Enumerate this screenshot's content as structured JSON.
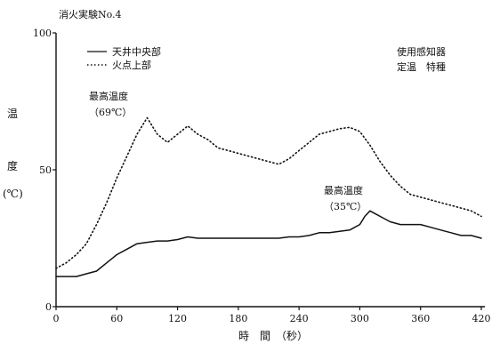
{
  "chart_data": {
    "type": "line",
    "title": "消火実験No.4",
    "ylabel": [
      "温",
      "度",
      "(℃)"
    ],
    "xlabel": "時　間　（秒）",
    "xlim": [
      0,
      420
    ],
    "ylim": [
      0,
      100
    ],
    "x_ticks": [
      0,
      60,
      120,
      180,
      240,
      300,
      360,
      420
    ],
    "y_ticks": [
      0,
      50,
      100
    ],
    "grid": false,
    "legend_position": "top-left",
    "note": [
      "使用感知器",
      "定温　特種"
    ],
    "series": [
      {
        "name": "天井中央部",
        "style": "solid",
        "x": [
          0,
          20,
          30,
          40,
          50,
          60,
          70,
          80,
          90,
          100,
          110,
          120,
          130,
          140,
          150,
          160,
          170,
          180,
          190,
          200,
          210,
          220,
          230,
          240,
          250,
          260,
          270,
          280,
          290,
          300,
          305,
          310,
          315,
          320,
          330,
          340,
          350,
          360,
          370,
          380,
          390,
          400,
          410,
          420
        ],
        "y": [
          11,
          11,
          12,
          13,
          16,
          19,
          21,
          23,
          23.5,
          24,
          24,
          24.5,
          25.5,
          25,
          25,
          25,
          25,
          25,
          25,
          25,
          25,
          25,
          25.5,
          25.5,
          26,
          27,
          27,
          27.5,
          28,
          30,
          33,
          35,
          34,
          33,
          31,
          30,
          30,
          30,
          29,
          28,
          27,
          26,
          26,
          25
        ]
      },
      {
        "name": "火点上部",
        "style": "dotted",
        "x": [
          0,
          10,
          20,
          30,
          40,
          50,
          60,
          70,
          80,
          90,
          100,
          110,
          120,
          130,
          140,
          150,
          160,
          170,
          180,
          190,
          200,
          210,
          220,
          230,
          240,
          250,
          260,
          270,
          280,
          290,
          300,
          310,
          320,
          330,
          340,
          350,
          360,
          370,
          380,
          390,
          400,
          410,
          420
        ],
        "y": [
          14,
          16,
          19,
          23,
          30,
          38,
          47,
          55,
          63,
          69,
          63,
          60,
          63,
          66,
          63,
          61,
          58,
          57,
          56,
          55,
          54,
          53,
          52,
          54,
          57,
          60,
          63,
          64,
          65,
          65.5,
          64,
          59,
          53,
          48,
          44,
          41,
          40,
          39,
          38,
          37,
          36,
          35,
          33
        ]
      }
    ],
    "annotations": [
      {
        "lines": [
          "最高温度",
          "（69℃）"
        ],
        "at_x": 90,
        "at_y": 69
      },
      {
        "lines": [
          "最高温度",
          "（35℃）"
        ],
        "at_x": 310,
        "at_y": 35
      }
    ]
  }
}
